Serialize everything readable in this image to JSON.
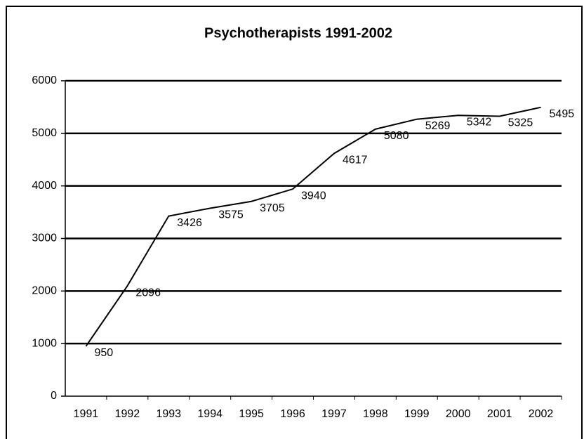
{
  "chart_data": {
    "type": "line",
    "title": "Psychotherapists 1991-2002",
    "categories": [
      "1991",
      "1992",
      "1993",
      "1994",
      "1995",
      "1996",
      "1997",
      "1998",
      "1999",
      "2000",
      "2001",
      "2002"
    ],
    "series": [
      {
        "name": "Psychotherapists",
        "color": "#000000",
        "values": [
          950,
          2096,
          3426,
          3575,
          3705,
          3940,
          4617,
          5080,
          5269,
          5342,
          5325,
          5495
        ]
      }
    ],
    "ylim": [
      0,
      6000
    ],
    "yticks": [
      0,
      1000,
      2000,
      3000,
      4000,
      5000,
      6000
    ],
    "grid": true
  }
}
